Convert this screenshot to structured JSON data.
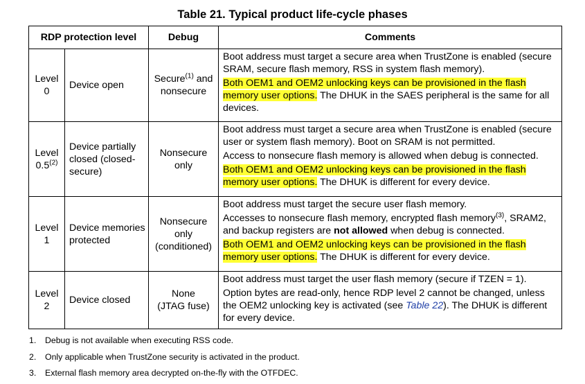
{
  "caption": "Table 21. Typical product life-cycle phases",
  "headers": {
    "level": "RDP protection level",
    "debug": "Debug",
    "comments": "Comments"
  },
  "rows": [
    {
      "level_word": "Level",
      "level_num": "0",
      "description": "Device open",
      "debug_a": "Secure",
      "debug_a_sup": "(1)",
      "debug_a_tail": "and",
      "debug_b": "nonsecure",
      "comments": {
        "p1": "Boot address must target a secure area when TrustZone is enabled (secure SRAM, secure flash memory, RSS in system flash memory).",
        "p2_hl": "Both OEM1 and OEM2 unlocking keys can be provisioned in the flash memory user options.",
        "p2_rest": " The DHUK in the SAES peripheral is the same for all devices."
      }
    },
    {
      "level_word": "Level",
      "level_num": "0.5",
      "level_sup": "(2)",
      "description": "Device partially closed (closed-secure)",
      "debug_a": "Nonsecure",
      "debug_b": "only",
      "comments": {
        "p1": "Boot address must target a secure area when TrustZone is enabled (secure user or system flash memory). Boot on SRAM is not permitted.",
        "p2": "Access to nonsecure flash memory is allowed when debug is connected.",
        "p3_hl": "Both OEM1 and OEM2 unlocking keys can be provisioned in the flash memory user options.",
        "p3_rest": " The DHUK is different for every device."
      }
    },
    {
      "level_word": "Level",
      "level_num": "1",
      "description": "Device memories protected",
      "debug_a": "Nonsecure",
      "debug_b": "only",
      "debug_c": "(conditioned)",
      "comments": {
        "p1": "Boot address must target the secure user flash memory.",
        "p2_a": "Accesses to nonsecure flash memory, encrypted flash memory",
        "p2_sup": "(3)",
        "p2_b": ", SRAM2, and backup registers are ",
        "p2_bold": "not allowed",
        "p2_c": " when debug is connected.",
        "p3_hl": "Both OEM1 and OEM2 unlocking keys can be provisioned in the flash memory user options.",
        "p3_rest": " The DHUK is different for every device."
      }
    },
    {
      "level_word": "Level",
      "level_num": "2",
      "description": "Device closed",
      "debug_a": "None",
      "debug_b": "(JTAG fuse)",
      "comments": {
        "p1": "Boot address must target the user flash memory (secure if TZEN = 1).",
        "p2_a": "Option bytes are read-only, hence RDP level 2 cannot be changed, unless the OEM2 unlocking key is activated (see ",
        "p2_link": "Table 22",
        "p2_b": "). The DHUK is different for every device."
      }
    }
  ],
  "notes": [
    {
      "num": "1.",
      "text": "Debug is not available when executing RSS code."
    },
    {
      "num": "2.",
      "text": "Only applicable when TrustZone security is activated in the product."
    },
    {
      "num": "3.",
      "text": "External flash memory area decrypted on-the-fly with the OTFDEC."
    }
  ],
  "colors": {
    "highlight": "#ffff33",
    "link": "#1f3fa6"
  }
}
